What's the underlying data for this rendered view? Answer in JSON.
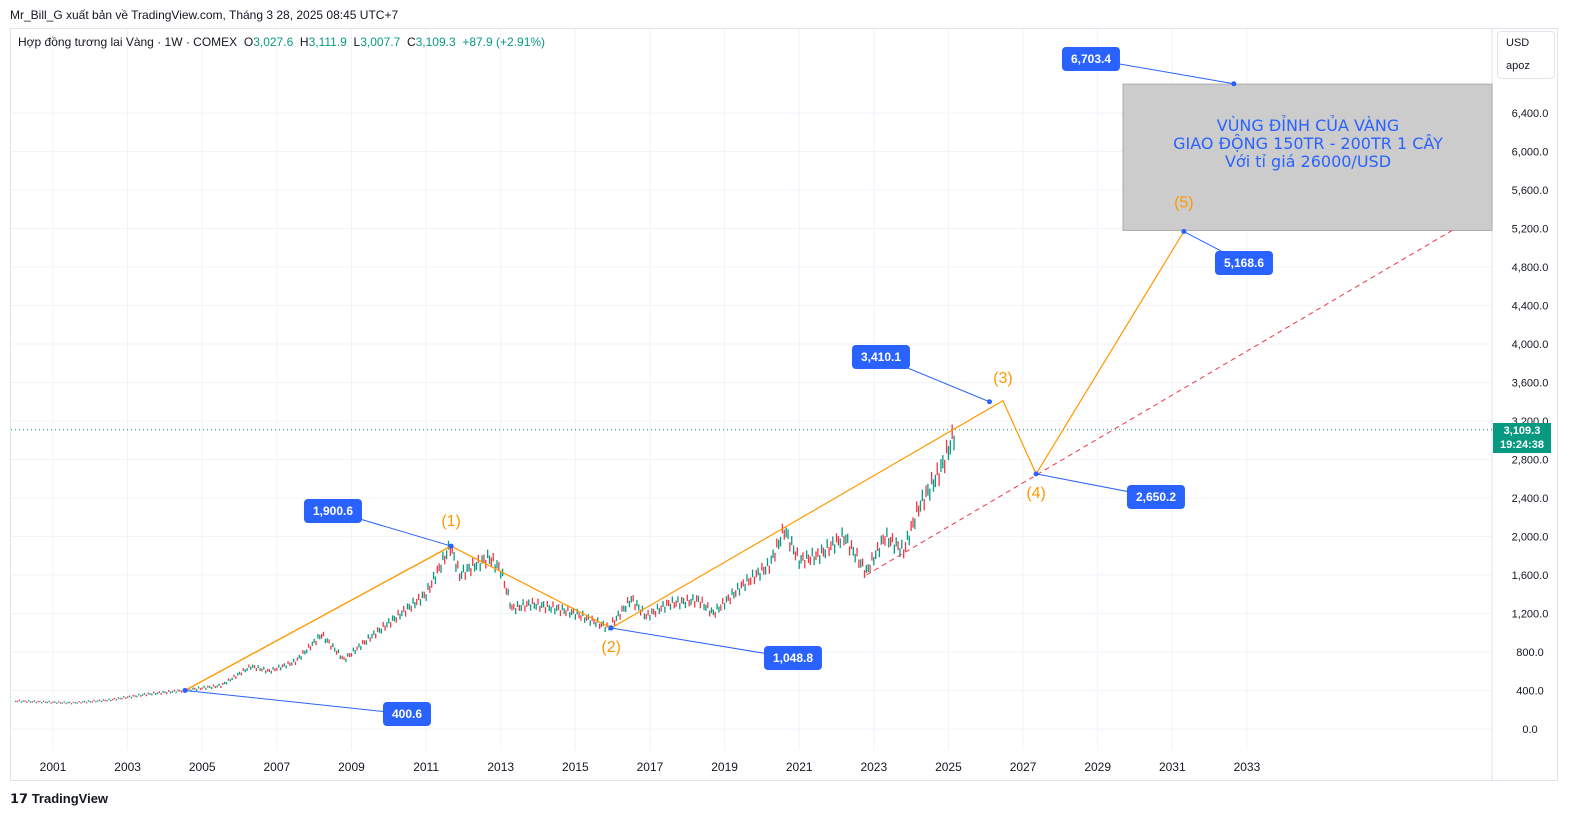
{
  "header": {
    "publisher": "Mr_Bill_G xuất bản về TradingView.com, Tháng 3 28, 2025 08:45 UTC+7"
  },
  "legend": {
    "symbol": "Hợp đồng tương lai Vàng · 1W · COMEX",
    "o_label": "O",
    "o": "3,027.6",
    "h_label": "H",
    "h": "3,111.9",
    "l_label": "L",
    "l": "3,007.7",
    "c_label": "C",
    "c": "3,109.3",
    "change": "+87.9 (+2.91%)"
  },
  "currency": {
    "unit": "USD",
    "scale": "apoz"
  },
  "price_tag": {
    "price": "3,109.3",
    "countdown": "19:24:38"
  },
  "zone_box": {
    "line1": "VÙNG ĐỈNH CỦA VÀNG",
    "line2": "GIAO ĐỘNG 150TR - 200TR 1 CÂY",
    "line3": "Với tỉ giá 26000/USD"
  },
  "labels": [
    "400.6",
    "1,900.6",
    "1,048.8",
    "3,410.1",
    "2,650.2",
    "5,168.6",
    "6,703.4"
  ],
  "waves": [
    "(1)",
    "(2)",
    "(3)",
    "(4)",
    "(5)"
  ],
  "branding": "TradingView",
  "colors": {
    "up": "#089981",
    "down": "#f23645",
    "wave": "#ff9800",
    "label": "#2962ff",
    "dashed": "#f23645",
    "box": "#cccccc"
  },
  "chart_data": {
    "type": "line",
    "title": "Hợp đồng tương lai Vàng · 1W · COMEX",
    "ylabel": "USD",
    "ylim": [
      -300,
      7100
    ],
    "xlim": [
      2000,
      2041
    ],
    "yticks": [
      "0.0",
      "400.0",
      "800.0",
      "1,200.0",
      "1,600.0",
      "2,000.0",
      "2,400.0",
      "2,800.0",
      "3,200.0",
      "3,600.0",
      "4,000.0",
      "4,400.0",
      "4,800.0",
      "5,200.0",
      "5,600.0",
      "6,000.0",
      "6,400.0"
    ],
    "ytick_values": [
      0,
      400,
      800,
      1200,
      1600,
      2000,
      2400,
      2800,
      3200,
      3600,
      4000,
      4400,
      4800,
      5200,
      5600,
      6000,
      6400
    ],
    "xticks": [
      "2001",
      "2003",
      "2005",
      "2007",
      "2009",
      "2011",
      "2013",
      "2015",
      "2017",
      "2019",
      "2021",
      "2023",
      "2025",
      "2027",
      "2029",
      "2031",
      "2033"
    ],
    "price": {
      "x": [
        2000.0,
        2001.5,
        2002.5,
        2003.5,
        2004.5,
        2005.5,
        2006.3,
        2006.8,
        2007.5,
        2008.2,
        2008.8,
        2009.5,
        2010.5,
        2011.0,
        2011.65,
        2011.9,
        2012.3,
        2012.7,
        2013.0,
        2013.3,
        2013.8,
        2014.5,
        2015.0,
        2015.9,
        2016.5,
        2016.9,
        2017.5,
        2018.3,
        2018.7,
        2019.5,
        2020.2,
        2020.6,
        2021.0,
        2021.5,
        2022.2,
        2022.8,
        2023.3,
        2023.8,
        2024.2,
        2024.8,
        2025.2
      ],
      "y": [
        290,
        270,
        300,
        360,
        400,
        450,
        650,
        600,
        700,
        980,
        720,
        950,
        1250,
        1400,
        1900,
        1600,
        1700,
        1780,
        1650,
        1250,
        1300,
        1250,
        1200,
        1050,
        1350,
        1170,
        1300,
        1340,
        1200,
        1500,
        1700,
        2070,
        1750,
        1800,
        2000,
        1630,
        2000,
        1850,
        2300,
        2700,
        3109
      ]
    },
    "elliott_wave": {
      "x": [
        2004.54,
        2011.67,
        2015.96,
        2026.46,
        2027.35,
        2031.31
      ],
      "y": [
        400.6,
        1900.6,
        1048.8,
        3410.1,
        2650.2,
        5168.6
      ]
    },
    "upper_channel": {
      "x": [
        2004.54,
        2011.67
      ],
      "y": [
        400.6,
        1900.6
      ]
    },
    "target_point": {
      "x": 2032.65,
      "y": 6703.4
    },
    "dashed_trend": {
      "x": [
        2022.8,
        2038.5
      ],
      "y": [
        1600,
        5180
      ]
    },
    "zone": {
      "x": [
        2029.68,
        2039.57
      ],
      "y": [
        5180,
        6700
      ]
    },
    "last_price": 3109.3
  }
}
